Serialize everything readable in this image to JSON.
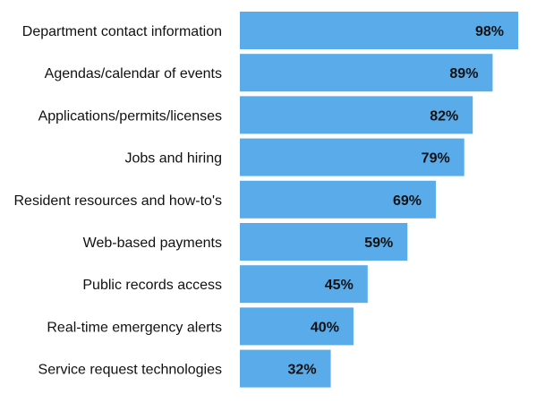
{
  "chart_data": {
    "type": "bar",
    "orientation": "horizontal",
    "categories": [
      "Department contact information",
      "Agendas/calendar of events",
      "Applications/permits/licenses",
      "Jobs and hiring",
      "Resident resources and how-to's",
      "Web-based payments",
      "Public records access",
      "Real-time emergency alerts",
      "Service request technologies"
    ],
    "values": [
      98,
      89,
      82,
      79,
      69,
      59,
      45,
      40,
      32
    ],
    "data_labels": [
      "98%",
      "89%",
      "82%",
      "79%",
      "69%",
      "59%",
      "45%",
      "40%",
      "32%"
    ],
    "xlim": [
      0,
      100
    ],
    "grid": false,
    "bar_color": "#5aabea",
    "title": "",
    "xlabel": "",
    "ylabel": ""
  }
}
